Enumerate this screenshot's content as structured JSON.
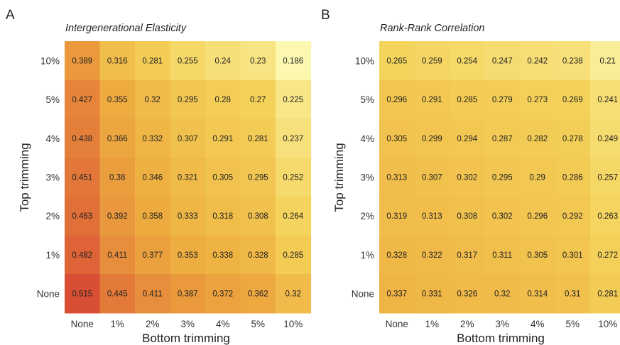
{
  "chart_data": [
    {
      "type": "heatmap",
      "panel_label": "A",
      "title": "Intergenerational Elasticity",
      "xlabel": "Bottom trimming",
      "ylabel": "Top trimming",
      "x_categories": [
        "None",
        "1%",
        "2%",
        "3%",
        "4%",
        "5%",
        "10%"
      ],
      "y_categories": [
        "10%",
        "5%",
        "4%",
        "3%",
        "2%",
        "1%",
        "None"
      ],
      "values": [
        [
          0.389,
          0.316,
          0.281,
          0.255,
          0.24,
          0.23,
          0.186
        ],
        [
          0.427,
          0.355,
          0.32,
          0.295,
          0.28,
          0.27,
          0.225
        ],
        [
          0.438,
          0.366,
          0.332,
          0.307,
          0.291,
          0.281,
          0.237
        ],
        [
          0.451,
          0.38,
          0.346,
          0.321,
          0.305,
          0.295,
          0.252
        ],
        [
          0.463,
          0.392,
          0.358,
          0.333,
          0.318,
          0.308,
          0.264
        ],
        [
          0.482,
          0.411,
          0.377,
          0.353,
          0.338,
          0.328,
          0.285
        ],
        [
          0.515,
          0.445,
          0.411,
          0.387,
          0.372,
          0.362,
          0.32
        ]
      ],
      "value_labels": [
        [
          "0.389",
          "0.316",
          "0.281",
          "0.255",
          "0.24",
          "0.23",
          "0.186"
        ],
        [
          "0.427",
          "0.355",
          "0.32",
          "0.295",
          "0.28",
          "0.27",
          "0.225"
        ],
        [
          "0.438",
          "0.366",
          "0.332",
          "0.307",
          "0.291",
          "0.281",
          "0.237"
        ],
        [
          "0.451",
          "0.38",
          "0.346",
          "0.321",
          "0.305",
          "0.295",
          "0.252"
        ],
        [
          "0.463",
          "0.392",
          "0.358",
          "0.333",
          "0.318",
          "0.308",
          "0.264"
        ],
        [
          "0.482",
          "0.411",
          "0.377",
          "0.353",
          "0.338",
          "0.328",
          "0.285"
        ],
        [
          "0.515",
          "0.445",
          "0.411",
          "0.387",
          "0.372",
          "0.362",
          "0.32"
        ]
      ]
    },
    {
      "type": "heatmap",
      "panel_label": "B",
      "title": "Rank-Rank Correlation",
      "xlabel": "Bottom trimming",
      "ylabel": "Top trimming",
      "x_categories": [
        "None",
        "1%",
        "2%",
        "3%",
        "4%",
        "5%",
        "10%"
      ],
      "y_categories": [
        "10%",
        "5%",
        "4%",
        "3%",
        "2%",
        "1%",
        "None"
      ],
      "values": [
        [
          0.265,
          0.259,
          0.254,
          0.247,
          0.242,
          0.238,
          0.21
        ],
        [
          0.296,
          0.291,
          0.285,
          0.279,
          0.273,
          0.269,
          0.241
        ],
        [
          0.305,
          0.299,
          0.294,
          0.287,
          0.282,
          0.278,
          0.249
        ],
        [
          0.313,
          0.307,
          0.302,
          0.295,
          0.29,
          0.286,
          0.257
        ],
        [
          0.319,
          0.313,
          0.308,
          0.302,
          0.296,
          0.292,
          0.263
        ],
        [
          0.328,
          0.322,
          0.317,
          0.311,
          0.305,
          0.301,
          0.272
        ],
        [
          0.337,
          0.331,
          0.326,
          0.32,
          0.314,
          0.31,
          0.281
        ]
      ],
      "value_labels": [
        [
          "0.265",
          "0.259",
          "0.254",
          "0.247",
          "0.242",
          "0.238",
          "0.21"
        ],
        [
          "0.296",
          "0.291",
          "0.285",
          "0.279",
          "0.273",
          "0.269",
          "0.241"
        ],
        [
          "0.305",
          "0.299",
          "0.294",
          "0.287",
          "0.282",
          "0.278",
          "0.249"
        ],
        [
          "0.313",
          "0.307",
          "0.302",
          "0.295",
          "0.29",
          "0.286",
          "0.257"
        ],
        [
          "0.319",
          "0.313",
          "0.308",
          "0.302",
          "0.296",
          "0.292",
          "0.263"
        ],
        [
          "0.328",
          "0.322",
          "0.317",
          "0.311",
          "0.305",
          "0.301",
          "0.272"
        ],
        [
          "0.337",
          "0.331",
          "0.326",
          "0.32",
          "0.314",
          "0.31",
          "0.281"
        ]
      ]
    }
  ],
  "colors": {
    "scale_low": "#fdf8b0",
    "scale_mid_low": "#f4d25a",
    "scale_mid": "#eeae40",
    "scale_mid_high": "#e5823a",
    "scale_high": "#d94f35",
    "scale_domain": [
      0.186,
      0.515
    ]
  }
}
